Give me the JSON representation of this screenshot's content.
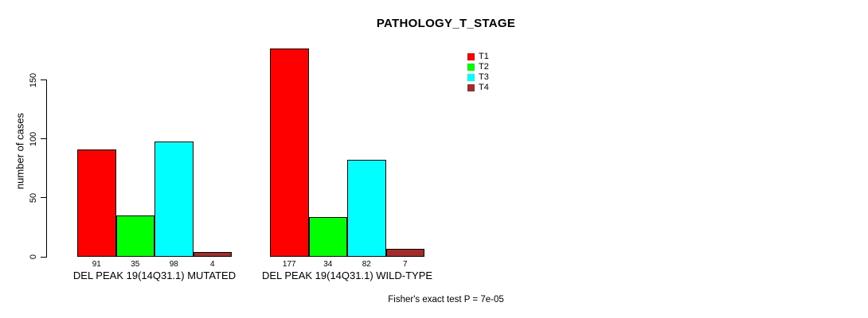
{
  "chart_data": {
    "type": "bar",
    "title": "PATHOLOGY_T_STAGE",
    "ylabel": "number of cases",
    "xlabel": "",
    "categories": [
      "DEL PEAK 19(14Q31.1) MUTATED",
      "DEL PEAK 19(14Q31.1) WILD-TYPE"
    ],
    "series": [
      {
        "name": "T1",
        "color": "#FF0000",
        "values": [
          91,
          177
        ]
      },
      {
        "name": "T2",
        "color": "#00FF00",
        "values": [
          35,
          34
        ]
      },
      {
        "name": "T3",
        "color": "#00FFFF",
        "values": [
          98,
          82
        ]
      },
      {
        "name": "T4",
        "color": "#A52A2A",
        "values": [
          4,
          7
        ]
      }
    ],
    "yticks": [
      0,
      50,
      100,
      150
    ],
    "ylim": [
      0,
      177
    ],
    "grid": false,
    "legend_position": "top-right",
    "bar_value_labels_shown": true,
    "annotation": "Fisher's exact test P = 7e-05"
  }
}
